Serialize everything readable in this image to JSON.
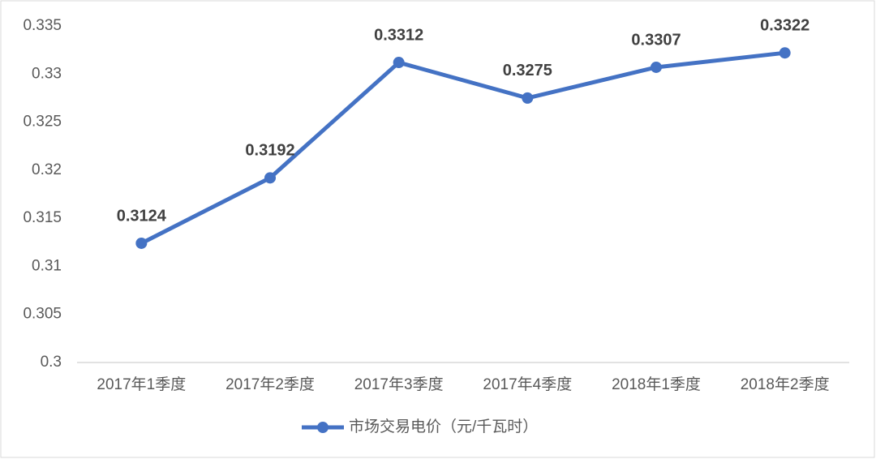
{
  "chart_data": {
    "type": "line",
    "categories": [
      "2017年1季度",
      "2017年2季度",
      "2017年3季度",
      "2017年4季度",
      "2018年1季度",
      "2018年2季度"
    ],
    "series": [
      {
        "name": "市场交易电价（元/千瓦时）",
        "color": "#4472c4",
        "values": [
          0.3124,
          0.3192,
          0.3312,
          0.3275,
          0.3307,
          0.3322
        ]
      }
    ],
    "ylim": [
      0.3,
      0.335
    ],
    "yticks": [
      0.3,
      0.305,
      0.31,
      0.315,
      0.32,
      0.325,
      0.33,
      0.335
    ],
    "grid": false,
    "legend": "bottom"
  }
}
